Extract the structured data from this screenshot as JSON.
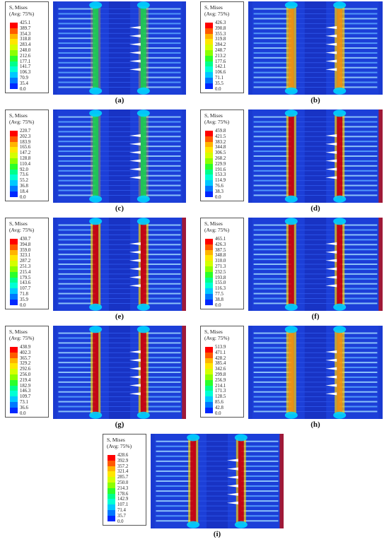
{
  "panels": [
    {
      "id": "a",
      "caption": "(a)",
      "legend_title": "S, Mises",
      "legend_sub": "(Avg: 75%)",
      "values": [
        "425.1",
        "389.7",
        "354.3",
        "318.8",
        "283.4",
        "248.0",
        "212.6",
        "177.1",
        "141.7",
        "106.3",
        "70.9",
        "35.4",
        "0.0"
      ],
      "stress": "low"
    },
    {
      "id": "b",
      "caption": "(b)",
      "legend_title": "S, Mises",
      "legend_sub": "(Avg: 75%)",
      "values": [
        "426.3",
        "390.8",
        "355.3",
        "319.8",
        "284.2",
        "248.7",
        "213.2",
        "177.6",
        "142.1",
        "106.6",
        "71.1",
        "35.5",
        "0.0"
      ],
      "stress": "mid"
    },
    {
      "id": "c",
      "caption": "(c)",
      "legend_title": "S, Mises",
      "legend_sub": "(Avg: 75%)",
      "values": [
        "220.7",
        "202.3",
        "183.9",
        "165.6",
        "147.2",
        "128.8",
        "110.4",
        "92.0",
        "73.6",
        "55.2",
        "36.8",
        "18.4",
        "0.0"
      ],
      "stress": "low"
    },
    {
      "id": "d",
      "caption": "(d)",
      "legend_title": "S, Mises",
      "legend_sub": "(Avg: 75%)",
      "values": [
        "459.8",
        "421.5",
        "383.2",
        "344.8",
        "306.5",
        "268.2",
        "229.9",
        "191.6",
        "153.3",
        "114.9",
        "76.6",
        "38.3",
        "0.0"
      ],
      "stress": "high"
    },
    {
      "id": "e",
      "caption": "(e)",
      "legend_title": "S, Mises",
      "legend_sub": "(Avg: 75%)",
      "values": [
        "430.7",
        "394.8",
        "359.0",
        "323.1",
        "287.2",
        "251.3",
        "215.4",
        "179.5",
        "143.6",
        "107.7",
        "71.8",
        "35.9",
        "0.0"
      ],
      "stress": "high"
    },
    {
      "id": "f",
      "caption": "(f)",
      "legend_title": "S, Mises",
      "legend_sub": "(Avg: 75%)",
      "values": [
        "465.1",
        "426.3",
        "387.5",
        "348.8",
        "310.0",
        "271.3",
        "232.5",
        "193.8",
        "155.0",
        "116.3",
        "77.5",
        "38.8",
        "0.0"
      ],
      "stress": "high"
    },
    {
      "id": "g",
      "caption": "(g)",
      "legend_title": "S, Mises",
      "legend_sub": "(Avg: 75%)",
      "values": [
        "438.9",
        "402.3",
        "365.7",
        "329.2",
        "292.6",
        "256.0",
        "219.4",
        "182.9",
        "146.3",
        "109.7",
        "73.1",
        "36.6",
        "0.0"
      ],
      "stress": "high"
    },
    {
      "id": "h",
      "caption": "(h)",
      "legend_title": "S, Mises",
      "legend_sub": "(Avg: 75%)",
      "values": [
        "513.9",
        "471.1",
        "428.2",
        "385.4",
        "342.6",
        "299.8",
        "256.9",
        "214.1",
        "171.3",
        "128.5",
        "85.6",
        "42.8",
        "0.0"
      ],
      "stress": "mid"
    },
    {
      "id": "i",
      "caption": "(i)",
      "legend_title": "S, Mises",
      "legend_sub": "(Avg: 75%)",
      "values": [
        "428.6",
        "392.9",
        "357.2",
        "321.4",
        "285.7",
        "250.0",
        "214.3",
        "178.6",
        "142.9",
        "107.1",
        "71.4",
        "35.7",
        "0.0"
      ],
      "stress": "high"
    }
  ],
  "colors": {
    "scale": [
      "#ff0000",
      "#ff5a00",
      "#ffb400",
      "#ffe600",
      "#d4ff00",
      "#8cff00",
      "#2bff2b",
      "#00ff8c",
      "#00ffd4",
      "#00c8ff",
      "#0078ff",
      "#0028ff"
    ],
    "background_blue": "#1c3fd8",
    "fiber_light": "#9fd8ff",
    "hot": "#d40000"
  }
}
